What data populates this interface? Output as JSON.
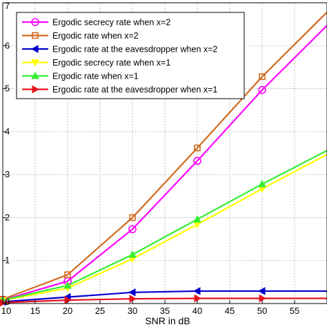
{
  "chart_data": {
    "type": "line",
    "xlabel": "SNR in dB",
    "ylabel": "",
    "xlim": [
      10,
      60
    ],
    "ylim": [
      0,
      7
    ],
    "xticks": [
      10,
      15,
      20,
      25,
      30,
      35,
      40,
      45,
      50,
      55
    ],
    "yticks": [
      0,
      1,
      2,
      3,
      4,
      5,
      6,
      7
    ],
    "grid": true,
    "legend_position": "top-left",
    "series": [
      {
        "name": "Ergodic secrecy rate when x=2",
        "color": "#ff00ff",
        "marker": "circle",
        "x": [
          10,
          20,
          30,
          40,
          50,
          60
        ],
        "y": [
          0.08,
          0.52,
          1.73,
          3.32,
          4.97,
          6.47
        ]
      },
      {
        "name": "Ergodic rate when x=2",
        "color": "#d2691e",
        "marker": "square",
        "x": [
          10,
          20,
          30,
          40,
          50,
          60
        ],
        "y": [
          0.1,
          0.67,
          2.0,
          3.62,
          5.28,
          6.78
        ]
      },
      {
        "name": "Ergodic rate at the eavesdropper when x=2",
        "color": "#0000cd",
        "marker": "triangle-left",
        "x": [
          10,
          20,
          30,
          40,
          50,
          60
        ],
        "y": [
          0.04,
          0.15,
          0.26,
          0.29,
          0.29,
          0.29
        ]
      },
      {
        "name": "Ergodic secrecy rate when x=1",
        "color": "#ffff00",
        "marker": "triangle-down",
        "x": [
          10,
          20,
          30,
          40,
          50,
          60
        ],
        "y": [
          0.07,
          0.36,
          1.04,
          1.84,
          2.67,
          3.47
        ]
      },
      {
        "name": "Ergodic rate when x=1",
        "color": "#33ee33",
        "marker": "triangle-up",
        "x": [
          10,
          20,
          30,
          40,
          50,
          60
        ],
        "y": [
          0.08,
          0.42,
          1.14,
          1.96,
          2.78,
          3.56
        ]
      },
      {
        "name": "Ergodic rate at the eavesdropper when x=1",
        "color": "#e8141e",
        "marker": "triangle-right",
        "x": [
          10,
          20,
          30,
          40,
          50,
          60
        ],
        "y": [
          0.02,
          0.08,
          0.11,
          0.12,
          0.12,
          0.12
        ]
      }
    ]
  }
}
